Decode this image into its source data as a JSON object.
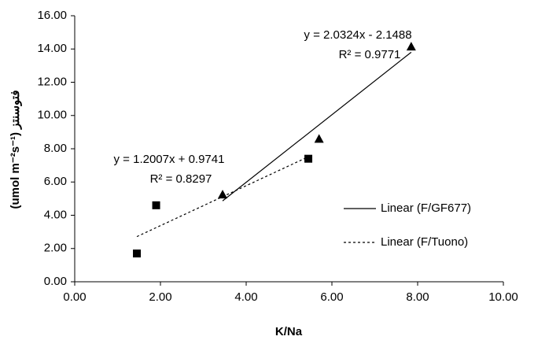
{
  "chart_data": {
    "type": "scatter",
    "x_label": "K/Na",
    "y_label": "(umol m⁻²s⁻¹) فتوسنتز",
    "xlim": [
      0,
      10
    ],
    "xticks": [
      {
        "value": 0,
        "label": "0.00"
      },
      {
        "value": 2,
        "label": "2.00"
      },
      {
        "value": 4,
        "label": "4.00"
      },
      {
        "value": 6,
        "label": "6.00"
      },
      {
        "value": 8,
        "label": "8.00"
      },
      {
        "value": 10,
        "label": "10.00"
      }
    ],
    "ylim": [
      0,
      16
    ],
    "yticks": [
      {
        "value": 0,
        "label": "0.00"
      },
      {
        "value": 2,
        "label": "2.00"
      },
      {
        "value": 4,
        "label": "4.00"
      },
      {
        "value": 6,
        "label": "6.00"
      },
      {
        "value": 8,
        "label": "8.00"
      },
      {
        "value": 10,
        "label": "10.00"
      },
      {
        "value": 12,
        "label": "12.00"
      },
      {
        "value": 14,
        "label": "14.00"
      },
      {
        "value": 16,
        "label": "16.00"
      }
    ],
    "grid": false,
    "legend": "right",
    "series": [
      {
        "marker": "triangle",
        "color": "#000000",
        "x": [
          3.45,
          5.7,
          7.85
        ],
        "values": [
          5.25,
          8.6,
          14.15
        ],
        "trendline": {
          "name": "Linear (F/GF677)",
          "style": "solid",
          "slope": 2.0324,
          "intercept": -2.1488,
          "equation": "y = 2.0324x - 2.1488",
          "r2_label": "R² = 0.9771"
        }
      },
      {
        "marker": "square",
        "color": "#000000",
        "x": [
          1.45,
          1.9,
          5.45
        ],
        "values": [
          1.7,
          4.6,
          7.4
        ],
        "trendline": {
          "name": "Linear (F/Tuono)",
          "style": "dotted",
          "slope": 1.2007,
          "intercept": 0.9741,
          "equation": "y = 1.2007x + 0.9741",
          "r2_label": "R² = 0.8297"
        }
      }
    ]
  }
}
